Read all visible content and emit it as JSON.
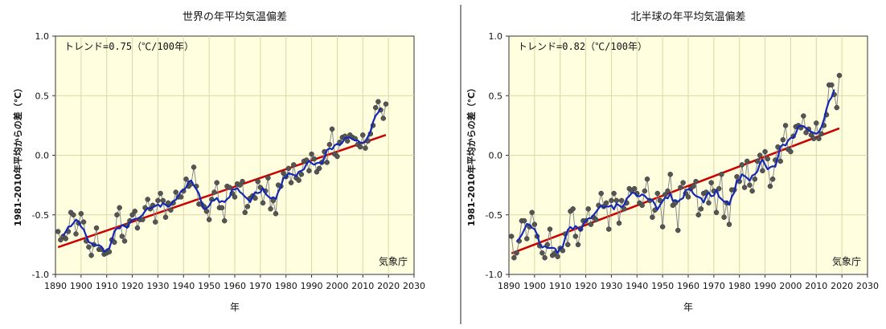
{
  "colors": {
    "plot_bg": "#ffffe0",
    "grid": "#d8d8a8",
    "annual_line": "#888888",
    "annual_marker": "#555555",
    "moving_avg": "#1428b4",
    "trend_line": "#cc0000"
  },
  "chart_data": [
    {
      "type": "line",
      "title": "世界の年平均気温偏差",
      "ylabel": "1981-2010年平均からの差（℃）",
      "xlabel": "年",
      "trend_label": "トレンド=0.75（℃/100年）",
      "credit": "気象庁",
      "xlim": [
        1890,
        2030
      ],
      "ylim": [
        -1.0,
        1.0
      ],
      "xticks": [
        "1890",
        "1900",
        "1910",
        "1920",
        "1930",
        "1940",
        "1950",
        "1960",
        "1970",
        "1980",
        "1990",
        "2000",
        "2010",
        "2020",
        "2030"
      ],
      "yticks": [
        "1.0",
        "0.5",
        "0.0",
        "-0.5",
        "-1.0"
      ],
      "grid": true,
      "series": [
        {
          "x": [
            1891,
            1892,
            1893,
            1894,
            1895,
            1896,
            1897,
            1898,
            1899,
            1900,
            1901,
            1902,
            1903,
            1904,
            1905,
            1906,
            1907,
            1908,
            1909,
            1910,
            1911,
            1912,
            1913,
            1914,
            1915,
            1916,
            1917,
            1918,
            1919,
            1920,
            1921,
            1922,
            1923,
            1924,
            1925,
            1926,
            1927,
            1928,
            1929,
            1930,
            1931,
            1932,
            1933,
            1934,
            1935,
            1936,
            1937,
            1938,
            1939,
            1940,
            1941,
            1942,
            1943,
            1944,
            1945,
            1946,
            1947,
            1948,
            1949,
            1950,
            1951,
            1952,
            1953,
            1954,
            1955,
            1956,
            1957,
            1958,
            1959,
            1960,
            1961,
            1962,
            1963,
            1964,
            1965,
            1966,
            1967,
            1968,
            1969,
            1970,
            1971,
            1972,
            1973,
            1974,
            1975,
            1976,
            1977,
            1978,
            1979,
            1980,
            1981,
            1982,
            1983,
            1984,
            1985,
            1986,
            1987,
            1988,
            1989,
            1990,
            1991,
            1992,
            1993,
            1994,
            1995,
            1996,
            1997,
            1998,
            1999,
            2000,
            2001,
            2002,
            2003,
            2004,
            2005,
            2006,
            2007,
            2008,
            2009,
            2010,
            2011,
            2012,
            2013,
            2014,
            2015,
            2016,
            2017,
            2018,
            2019
          ],
          "y": [
            -0.64,
            -0.71,
            -0.68,
            -0.7,
            -0.64,
            -0.48,
            -0.5,
            -0.66,
            -0.57,
            -0.49,
            -0.56,
            -0.72,
            -0.77,
            -0.84,
            -0.75,
            -0.61,
            -0.79,
            -0.79,
            -0.83,
            -0.82,
            -0.81,
            -0.71,
            -0.73,
            -0.5,
            -0.44,
            -0.68,
            -0.72,
            -0.59,
            -0.55,
            -0.5,
            -0.47,
            -0.61,
            -0.54,
            -0.54,
            -0.44,
            -0.37,
            -0.45,
            -0.42,
            -0.56,
            -0.38,
            -0.32,
            -0.38,
            -0.52,
            -0.4,
            -0.46,
            -0.4,
            -0.31,
            -0.35,
            -0.35,
            -0.3,
            -0.2,
            -0.26,
            -0.24,
            -0.1,
            -0.26,
            -0.41,
            -0.41,
            -0.43,
            -0.47,
            -0.54,
            -0.37,
            -0.31,
            -0.23,
            -0.44,
            -0.44,
            -0.55,
            -0.26,
            -0.27,
            -0.32,
            -0.35,
            -0.24,
            -0.25,
            -0.22,
            -0.48,
            -0.43,
            -0.36,
            -0.34,
            -0.36,
            -0.22,
            -0.27,
            -0.4,
            -0.3,
            -0.19,
            -0.45,
            -0.38,
            -0.49,
            -0.25,
            -0.26,
            -0.15,
            -0.18,
            -0.11,
            -0.23,
            -0.08,
            -0.19,
            -0.21,
            -0.16,
            -0.05,
            -0.04,
            -0.13,
            0.01,
            -0.03,
            -0.14,
            -0.11,
            -0.06,
            0.03,
            -0.06,
            0.09,
            0.22,
            0.01,
            -0.01,
            0.11,
            0.15,
            0.16,
            0.12,
            0.17,
            0.15,
            0.14,
            0.09,
            0.07,
            0.17,
            0.06,
            0.12,
            0.18,
            0.25,
            0.4,
            0.45,
            0.38,
            0.31,
            0.43
          ]
        }
      ]
    },
    {
      "type": "line",
      "title": "北半球の年平均気温偏差",
      "ylabel": "1981-2010年平均からの差（℃）",
      "xlabel": "年",
      "trend_label": "トレンド=0.82（℃/100年）",
      "credit": "気象庁",
      "xlim": [
        1890,
        2030
      ],
      "ylim": [
        -1.0,
        1.0
      ],
      "xticks": [
        "1890",
        "1900",
        "1910",
        "1920",
        "1930",
        "1940",
        "1950",
        "1960",
        "1970",
        "1980",
        "1990",
        "2000",
        "2010",
        "2020",
        "2030"
      ],
      "yticks": [
        "1.0",
        "0.5",
        "0.0",
        "-0.5",
        "-1.0"
      ],
      "grid": true,
      "series": [
        {
          "x": [
            1891,
            1892,
            1893,
            1894,
            1895,
            1896,
            1897,
            1898,
            1899,
            1900,
            1901,
            1902,
            1903,
            1904,
            1905,
            1906,
            1907,
            1908,
            1909,
            1910,
            1911,
            1912,
            1913,
            1914,
            1915,
            1916,
            1917,
            1918,
            1919,
            1920,
            1921,
            1922,
            1923,
            1924,
            1925,
            1926,
            1927,
            1928,
            1929,
            1930,
            1931,
            1932,
            1933,
            1934,
            1935,
            1936,
            1937,
            1938,
            1939,
            1940,
            1941,
            1942,
            1943,
            1944,
            1945,
            1946,
            1947,
            1948,
            1949,
            1950,
            1951,
            1952,
            1953,
            1954,
            1955,
            1956,
            1957,
            1958,
            1959,
            1960,
            1961,
            1962,
            1963,
            1964,
            1965,
            1966,
            1967,
            1968,
            1969,
            1970,
            1971,
            1972,
            1973,
            1974,
            1975,
            1976,
            1977,
            1978,
            1979,
            1980,
            1981,
            1982,
            1983,
            1984,
            1985,
            1986,
            1987,
            1988,
            1989,
            1990,
            1991,
            1992,
            1993,
            1994,
            1995,
            1996,
            1997,
            1998,
            1999,
            2000,
            2001,
            2002,
            2003,
            2004,
            2005,
            2006,
            2007,
            2008,
            2009,
            2010,
            2011,
            2012,
            2013,
            2014,
            2015,
            2016,
            2017,
            2018,
            2019
          ],
          "y": [
            -0.68,
            -0.86,
            -0.82,
            -0.72,
            -0.55,
            -0.55,
            -0.7,
            -0.6,
            -0.48,
            -0.58,
            -0.68,
            -0.76,
            -0.82,
            -0.86,
            -0.75,
            -0.62,
            -0.84,
            -0.82,
            -0.85,
            -0.78,
            -0.8,
            -0.66,
            -0.75,
            -0.47,
            -0.45,
            -0.68,
            -0.75,
            -0.62,
            -0.55,
            -0.55,
            -0.45,
            -0.58,
            -0.52,
            -0.54,
            -0.42,
            -0.32,
            -0.43,
            -0.4,
            -0.62,
            -0.38,
            -0.32,
            -0.38,
            -0.57,
            -0.38,
            -0.45,
            -0.4,
            -0.28,
            -0.3,
            -0.28,
            -0.32,
            -0.4,
            -0.42,
            -0.3,
            -0.2,
            -0.38,
            -0.52,
            -0.46,
            -0.32,
            -0.38,
            -0.6,
            -0.33,
            -0.3,
            -0.16,
            -0.42,
            -0.4,
            -0.63,
            -0.27,
            -0.23,
            -0.32,
            -0.35,
            -0.28,
            -0.26,
            -0.22,
            -0.5,
            -0.45,
            -0.32,
            -0.31,
            -0.4,
            -0.23,
            -0.3,
            -0.48,
            -0.28,
            -0.16,
            -0.52,
            -0.4,
            -0.58,
            -0.29,
            -0.29,
            -0.18,
            -0.22,
            -0.08,
            -0.27,
            -0.05,
            -0.25,
            -0.3,
            -0.2,
            -0.05,
            0.0,
            -0.13,
            0.03,
            -0.03,
            -0.26,
            -0.2,
            -0.04,
            0.07,
            -0.05,
            0.13,
            0.25,
            0.05,
            0.03,
            0.16,
            0.24,
            0.25,
            0.23,
            0.33,
            0.19,
            0.22,
            0.17,
            0.14,
            0.27,
            0.14,
            0.18,
            0.25,
            0.34,
            0.59,
            0.59,
            0.51,
            0.4,
            0.67
          ]
        }
      ]
    }
  ]
}
